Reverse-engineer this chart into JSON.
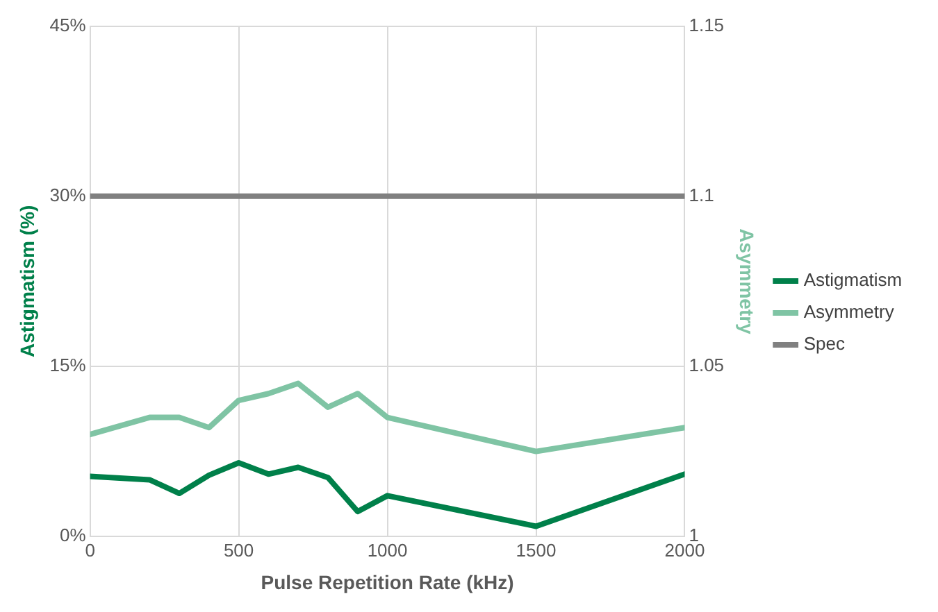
{
  "chart_data": {
    "type": "line",
    "xlabel": "Pulse Repetition Rate (kHz)",
    "ylabel": "Astigmatism (%)",
    "y2label": "Asymmetry",
    "x": [
      0,
      200,
      300,
      400,
      500,
      600,
      700,
      800,
      900,
      1000,
      1500,
      2000
    ],
    "xlim": [
      0,
      2000
    ],
    "xticks": [
      0,
      500,
      1000,
      1500,
      2000
    ],
    "ylim": [
      0,
      45
    ],
    "yticks": [
      {
        "value": 0,
        "label": "0%"
      },
      {
        "value": 15,
        "label": "15%"
      },
      {
        "value": 30,
        "label": "30%"
      },
      {
        "value": 45,
        "label": "45%"
      }
    ],
    "y2lim": [
      1,
      1.15
    ],
    "y2ticks": [
      1,
      1.05,
      1.1,
      1.15
    ],
    "series": [
      {
        "name": "Astigmatism",
        "color": "#00804a",
        "values": [
          5.3,
          5.0,
          3.8,
          5.4,
          6.5,
          5.5,
          6.1,
          5.2,
          2.2,
          3.6,
          0.9,
          5.5
        ]
      },
      {
        "name": "Asymmetry",
        "color": "#7fc4a4",
        "axis": "y2",
        "values": [
          1.03,
          1.035,
          1.035,
          1.032,
          1.04,
          1.042,
          1.045,
          1.038,
          1.042,
          1.035,
          1.025,
          1.032
        ]
      },
      {
        "name": "Spec",
        "color": "#808080",
        "x": [
          0,
          2000
        ],
        "values": [
          30,
          30
        ]
      }
    ],
    "grid": true,
    "legend": "right",
    "marker": "none",
    "line_style": "solid"
  }
}
